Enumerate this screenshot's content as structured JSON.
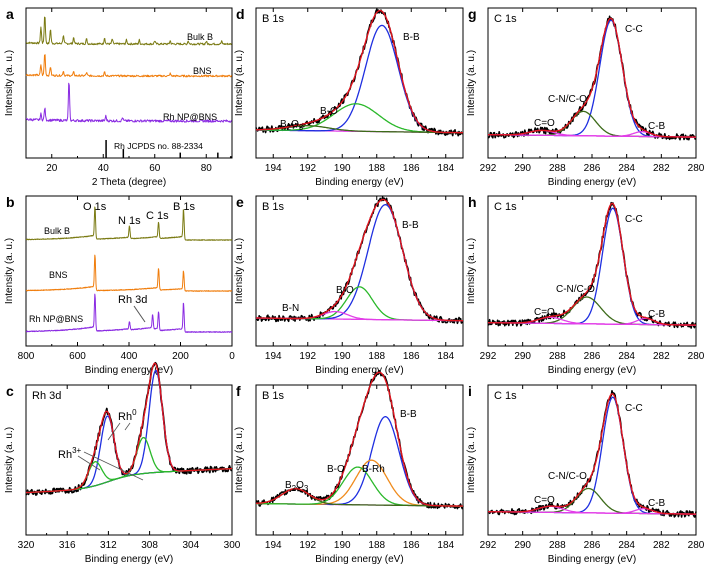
{
  "figure": {
    "panels": [
      {
        "id": "a",
        "letter": "a",
        "title": "",
        "xlabel": "2 Theta (degree)",
        "ylabel": "Intensity (a. u.)",
        "xticks": [
          20,
          40,
          60,
          80
        ],
        "labels": [
          "Bulk B",
          "BNS",
          "Rh NP@BNS",
          "Rh JCPDS no. 88-2334"
        ]
      },
      {
        "id": "b",
        "letter": "b",
        "title": "",
        "xlabel": "Binding energy (eV)",
        "ylabel": "Intensity (a. u.)",
        "xticks": [
          800,
          600,
          400,
          200,
          0
        ],
        "labels": [
          "O 1s",
          "N 1s",
          "C 1s",
          "B 1s",
          "Bulk B",
          "BNS",
          "Rh NP@BNS",
          "Rh 3d"
        ]
      },
      {
        "id": "c",
        "letter": "c",
        "title": "Rh 3d",
        "xlabel": "Binding energy (eV)",
        "ylabel": "Intensity (a. u.)",
        "xticks": [
          320,
          316,
          312,
          308,
          304,
          300
        ],
        "labels": [
          "Rh3+",
          "Rh0"
        ]
      },
      {
        "id": "d",
        "letter": "d",
        "title": "B 1s",
        "xlabel": "Binding energy (eV)",
        "ylabel": "Intensity (a. u.)",
        "xticks": [
          194,
          192,
          190,
          188,
          186,
          184
        ],
        "labels": [
          "B2O3",
          "B-O",
          "B-B"
        ]
      },
      {
        "id": "e",
        "letter": "e",
        "title": "B 1s",
        "xlabel": "Binding energy (eV)",
        "ylabel": "Intensity (a. u.)",
        "xticks": [
          194,
          192,
          190,
          188,
          186,
          184
        ],
        "labels": [
          "B-N",
          "B-O",
          "B-B"
        ]
      },
      {
        "id": "f",
        "letter": "f",
        "title": "B 1s",
        "xlabel": "Binding energy (eV)",
        "ylabel": "Intensity (a. u.)",
        "xticks": [
          194,
          192,
          190,
          188,
          186,
          184
        ],
        "labels": [
          "B2O3",
          "B-O",
          "B-Rh",
          "B-B"
        ]
      },
      {
        "id": "g",
        "letter": "g",
        "title": "C 1s",
        "xlabel": "Binding energy (eV)",
        "ylabel": "Intensity (a. u.)",
        "xticks": [
          292,
          290,
          288,
          286,
          284,
          282,
          280
        ],
        "labels": [
          "C=O",
          "C-N/C-O",
          "C-C",
          "C-B"
        ]
      },
      {
        "id": "h",
        "letter": "h",
        "title": "C 1s",
        "xlabel": "Binding energy (eV)",
        "ylabel": "Intensity (a. u.)",
        "xticks": [
          292,
          290,
          288,
          286,
          284,
          282,
          280
        ],
        "labels": [
          "C=O",
          "C-N/C-O",
          "C-C",
          "C-B"
        ]
      },
      {
        "id": "i",
        "letter": "i",
        "title": "C 1s",
        "xlabel": "Binding energy (eV)",
        "ylabel": "Intensity (a. u.)",
        "xticks": [
          292,
          290,
          288,
          286,
          284,
          282,
          280
        ],
        "labels": [
          "C=O",
          "C-N/C-O",
          "C-C",
          "C-B"
        ]
      }
    ]
  },
  "colors": {
    "bulk_b": "#7a7a12",
    "bns": "#f07d0c",
    "rhnp": "#8a2be2",
    "ref": "#000000",
    "raw": "#000000",
    "envelope": "#e0141e",
    "background": "#e23ee8",
    "blue": "#1f2fe0",
    "green": "#2ab82a",
    "lightgreen": "#55e04a",
    "orange": "#f08b1c",
    "olive": "#3d6b1a"
  },
  "chart_data": [
    {
      "panel": "a",
      "type": "line",
      "x_range": [
        10,
        90
      ],
      "series": [
        {
          "name": "Bulk B",
          "peaks": [
            [
              17.3,
              0.9
            ],
            [
              15.8,
              0.5
            ],
            [
              19.5,
              0.45
            ],
            [
              24.5,
              0.25
            ],
            [
              28.5,
              0.2
            ],
            [
              33.5,
              0.15
            ],
            [
              40.5,
              0.2
            ],
            [
              43.5,
              0.15
            ],
            [
              49,
              0.12
            ],
            [
              54,
              0.12
            ],
            [
              60,
              0.1
            ],
            [
              66,
              0.1
            ],
            [
              73,
              0.1
            ],
            [
              80,
              0.08
            ],
            [
              86,
              0.08
            ]
          ]
        },
        {
          "name": "BNS",
          "peaks": [
            [
              17.3,
              0.75
            ],
            [
              15.8,
              0.35
            ],
            [
              19.5,
              0.3
            ],
            [
              24.5,
              0.15
            ],
            [
              28.5,
              0.12
            ],
            [
              33.5,
              0.1
            ],
            [
              40.5,
              0.12
            ],
            [
              66,
              0.08
            ]
          ]
        },
        {
          "name": "Rh NP@BNS",
          "peaks": [
            [
              17.3,
              0.3
            ],
            [
              15.8,
              0.15
            ],
            [
              26.7,
              1.0
            ],
            [
              41,
              0.12
            ],
            [
              47.5,
              0.08
            ]
          ]
        },
        {
          "name": "Rh JCPDS no. 88-2334",
          "sticks": [
            [
              41.1,
              1.0
            ],
            [
              47.8,
              0.5
            ],
            [
              69.9,
              0.3
            ],
            [
              84.5,
              0.3
            ],
            [
              89.5,
              0.1
            ]
          ]
        }
      ]
    },
    {
      "panel": "b",
      "type": "line",
      "x_range": [
        800,
        0
      ],
      "series": [
        {
          "name": "Bulk B",
          "peaks": [
            [
              532,
              0.9
            ],
            [
              398,
              0.35
            ],
            [
              285,
              0.45
            ],
            [
              188,
              0.85
            ]
          ]
        },
        {
          "name": "BNS",
          "peaks": [
            [
              532,
              1.0
            ],
            [
              285,
              0.6
            ],
            [
              188,
              0.55
            ]
          ]
        },
        {
          "name": "Rh NP@BNS",
          "peaks": [
            [
              532,
              0.9
            ],
            [
              398,
              0.2
            ],
            [
              308,
              0.35
            ],
            [
              285,
              0.45
            ],
            [
              188,
              0.7
            ]
          ]
        }
      ]
    },
    {
      "panel": "c",
      "type": "line",
      "x_range": [
        320,
        300
      ],
      "components": [
        {
          "name": "Rh0",
          "color": "blue",
          "peaks": [
            [
              307.4,
              0.85
            ],
            [
              312.1,
              0.55
            ]
          ]
        },
        {
          "name": "Rh3+",
          "color": "green",
          "peaks": [
            [
              308.6,
              0.3
            ],
            [
              313.3,
              0.2
            ]
          ]
        }
      ],
      "background": "sloped"
    },
    {
      "panel": "d",
      "type": "line",
      "x_range": [
        195,
        183
      ],
      "components": [
        {
          "name": "B-B",
          "color": "blue",
          "center": 187.7,
          "height": 0.85,
          "width": 0.95
        },
        {
          "name": "B-O",
          "color": "green",
          "center": 189.2,
          "height": 0.22,
          "width": 1.3
        },
        {
          "name": "B2O3",
          "color": "olive",
          "center": 192.0,
          "height": 0.04,
          "width": 1.2
        }
      ]
    },
    {
      "panel": "e",
      "type": "line",
      "x_range": [
        195,
        183
      ],
      "components": [
        {
          "name": "B-B",
          "color": "blue",
          "center": 187.5,
          "height": 0.92,
          "width": 1.0
        },
        {
          "name": "B-O",
          "color": "green",
          "center": 189.0,
          "height": 0.26,
          "width": 0.75
        },
        {
          "name": "B-N",
          "color": "background",
          "center": 190.4,
          "height": 0.06,
          "width": 0.7
        }
      ]
    },
    {
      "panel": "f",
      "type": "line",
      "x_range": [
        195,
        183
      ],
      "components": [
        {
          "name": "B-B",
          "color": "blue",
          "center": 187.5,
          "height": 0.75,
          "width": 0.8
        },
        {
          "name": "B-Rh",
          "color": "orange",
          "center": 188.3,
          "height": 0.38,
          "width": 0.9
        },
        {
          "name": "B-O",
          "color": "green",
          "center": 189.1,
          "height": 0.32,
          "width": 0.85
        },
        {
          "name": "B2O3",
          "color": "olive",
          "center": 192.7,
          "height": 0.13,
          "width": 0.8
        }
      ]
    },
    {
      "panel": "g",
      "type": "line",
      "x_range": [
        292,
        280
      ],
      "components": [
        {
          "name": "C-C",
          "color": "blue",
          "center": 284.9,
          "height": 0.95,
          "width": 0.65
        },
        {
          "name": "C-N/C-O",
          "color": "olive",
          "center": 286.5,
          "height": 0.2,
          "width": 0.7
        },
        {
          "name": "C=O",
          "color": "background",
          "center": 288.9,
          "height": 0.04,
          "width": 0.7
        },
        {
          "name": "C-B",
          "color": "background",
          "center": 283.1,
          "height": 0.04,
          "width": 0.5
        }
      ]
    },
    {
      "panel": "h",
      "type": "line",
      "x_range": [
        292,
        280
      ],
      "components": [
        {
          "name": "C-C",
          "color": "blue",
          "center": 284.8,
          "height": 0.95,
          "width": 0.6
        },
        {
          "name": "C-N/C-O",
          "color": "olive",
          "center": 286.3,
          "height": 0.22,
          "width": 0.8
        },
        {
          "name": "C=O",
          "color": "background",
          "center": 288.4,
          "height": 0.05,
          "width": 0.7
        },
        {
          "name": "C-B",
          "color": "background",
          "center": 282.9,
          "height": 0.05,
          "width": 0.5
        }
      ]
    },
    {
      "panel": "i",
      "type": "line",
      "x_range": [
        292,
        280
      ],
      "components": [
        {
          "name": "C-C",
          "color": "blue",
          "center": 284.8,
          "height": 0.95,
          "width": 0.6
        },
        {
          "name": "C-N/C-O",
          "color": "olive",
          "center": 286.2,
          "height": 0.2,
          "width": 0.7
        },
        {
          "name": "C=O",
          "color": "background",
          "center": 288.4,
          "height": 0.05,
          "width": 0.7
        },
        {
          "name": "C-B",
          "color": "background",
          "center": 283.0,
          "height": 0.04,
          "width": 0.5
        }
      ]
    }
  ]
}
